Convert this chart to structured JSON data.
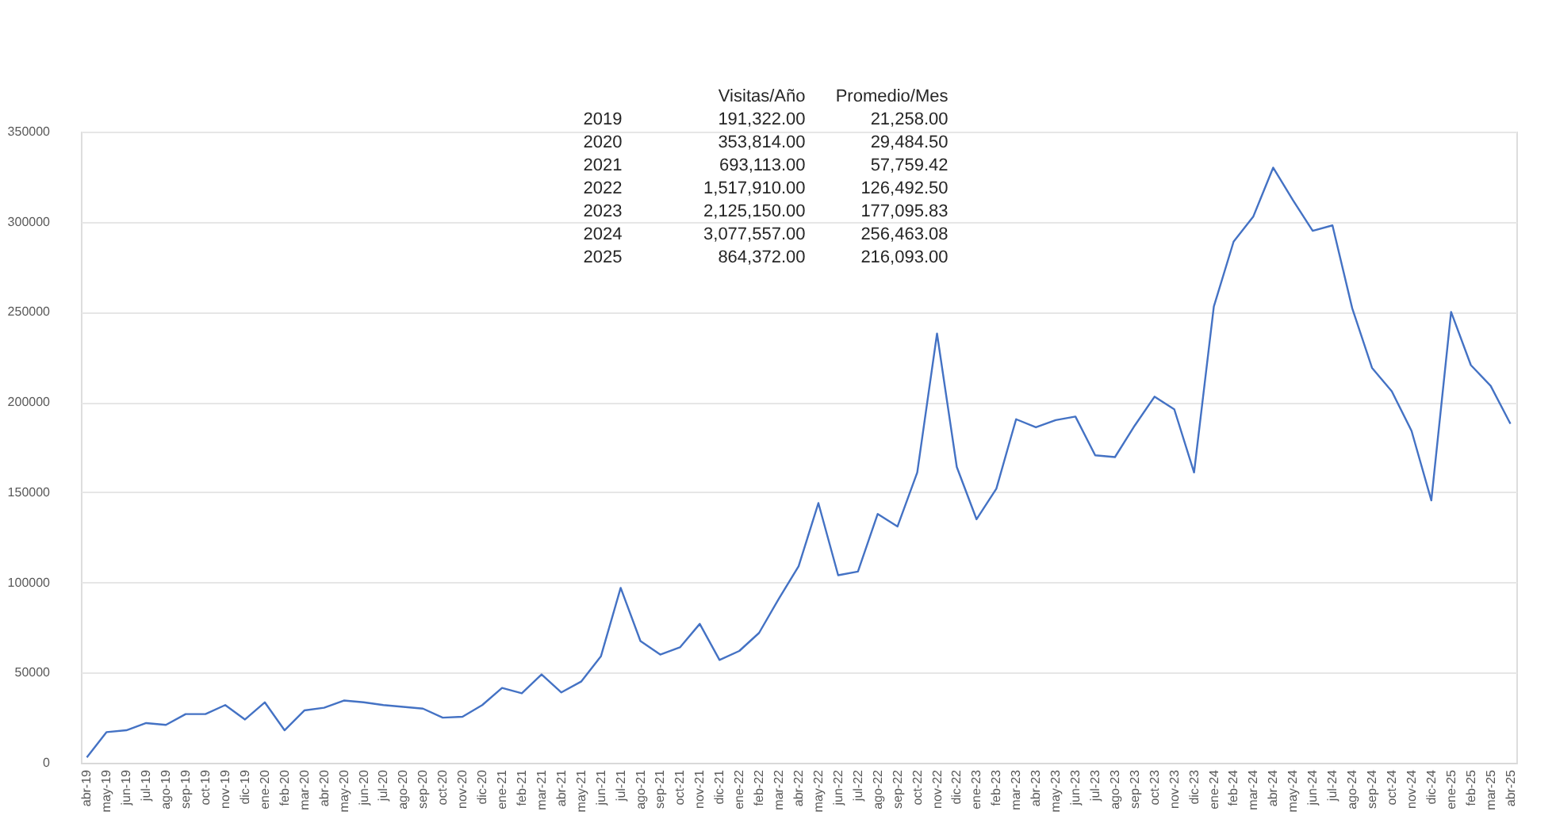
{
  "chart_data": {
    "type": "line",
    "categories": [
      "abr-19",
      "may-19",
      "jun-19",
      "jul-19",
      "ago-19",
      "sep-19",
      "oct-19",
      "nov-19",
      "dic-19",
      "ene-20",
      "feb-20",
      "mar-20",
      "abr-20",
      "may-20",
      "jun-20",
      "jul-20",
      "ago-20",
      "sep-20",
      "oct-20",
      "nov-20",
      "dic-20",
      "ene-21",
      "feb-21",
      "mar-21",
      "abr-21",
      "may-21",
      "jun-21",
      "jul-21",
      "ago-21",
      "sep-21",
      "oct-21",
      "nov-21",
      "dic-21",
      "ene-22",
      "feb-22",
      "mar-22",
      "abr-22",
      "may-22",
      "jun-22",
      "jul-22",
      "ago-22",
      "sep-22",
      "oct-22",
      "nov-22",
      "dic-22",
      "ene-23",
      "feb-23",
      "mar-23",
      "abr-23",
      "may-23",
      "jun-23",
      "jul-23",
      "ago-23",
      "sep-23",
      "oct-23",
      "nov-23",
      "dic-23",
      "ene-24",
      "feb-24",
      "mar-24",
      "abr-24",
      "may-24",
      "jun-24",
      "jul-24",
      "ago-24",
      "sep-24",
      "oct-24",
      "nov-24",
      "dic-24",
      "ene-25",
      "feb-25",
      "mar-25",
      "abr-25"
    ],
    "series": [
      {
        "color": "#4472c4",
        "values": [
          3000,
          17000,
          18000,
          22000,
          21000,
          27000,
          27000,
          32000,
          24000,
          33500,
          18000,
          29000,
          30500,
          34500,
          33500,
          32000,
          31000,
          30000,
          25000,
          25500,
          32000,
          41500,
          38500,
          49000,
          39000,
          45000,
          59000,
          97000,
          67500,
          60000,
          64000,
          77000,
          57000,
          62000,
          72000,
          91000,
          109000,
          144000,
          104000,
          106000,
          138000,
          131000,
          161000,
          238000,
          164000,
          135000,
          152000,
          190500,
          186000,
          190000,
          192000,
          170500,
          169500,
          187000,
          203000,
          196000,
          161000,
          253000,
          289000,
          303000,
          330000,
          312000,
          295000,
          298000,
          252000,
          219000,
          206000,
          184000,
          145500,
          250000,
          220500,
          209000,
          188000
        ]
      }
    ],
    "ylim": [
      0,
      350000
    ],
    "yticks": [
      0,
      50000,
      100000,
      150000,
      200000,
      250000,
      300000,
      350000
    ],
    "grid": "y",
    "marker": "none",
    "line_style": "solid",
    "annotations": [
      "Visitas/Año",
      "Promedio/Mes",
      "2019",
      "191,322.00",
      "21,258.00",
      "2020",
      "353,814.00",
      "29,484.50",
      "2021",
      "693,113.00",
      "57,759.42",
      "2022",
      "1,517,910.00",
      "126,492.50",
      "2023",
      "2,125,150.00",
      "177,095.83",
      "2024",
      "3,077,557.00",
      "256,463.08",
      "2025",
      "864,372.00",
      "216,093.00"
    ]
  }
}
